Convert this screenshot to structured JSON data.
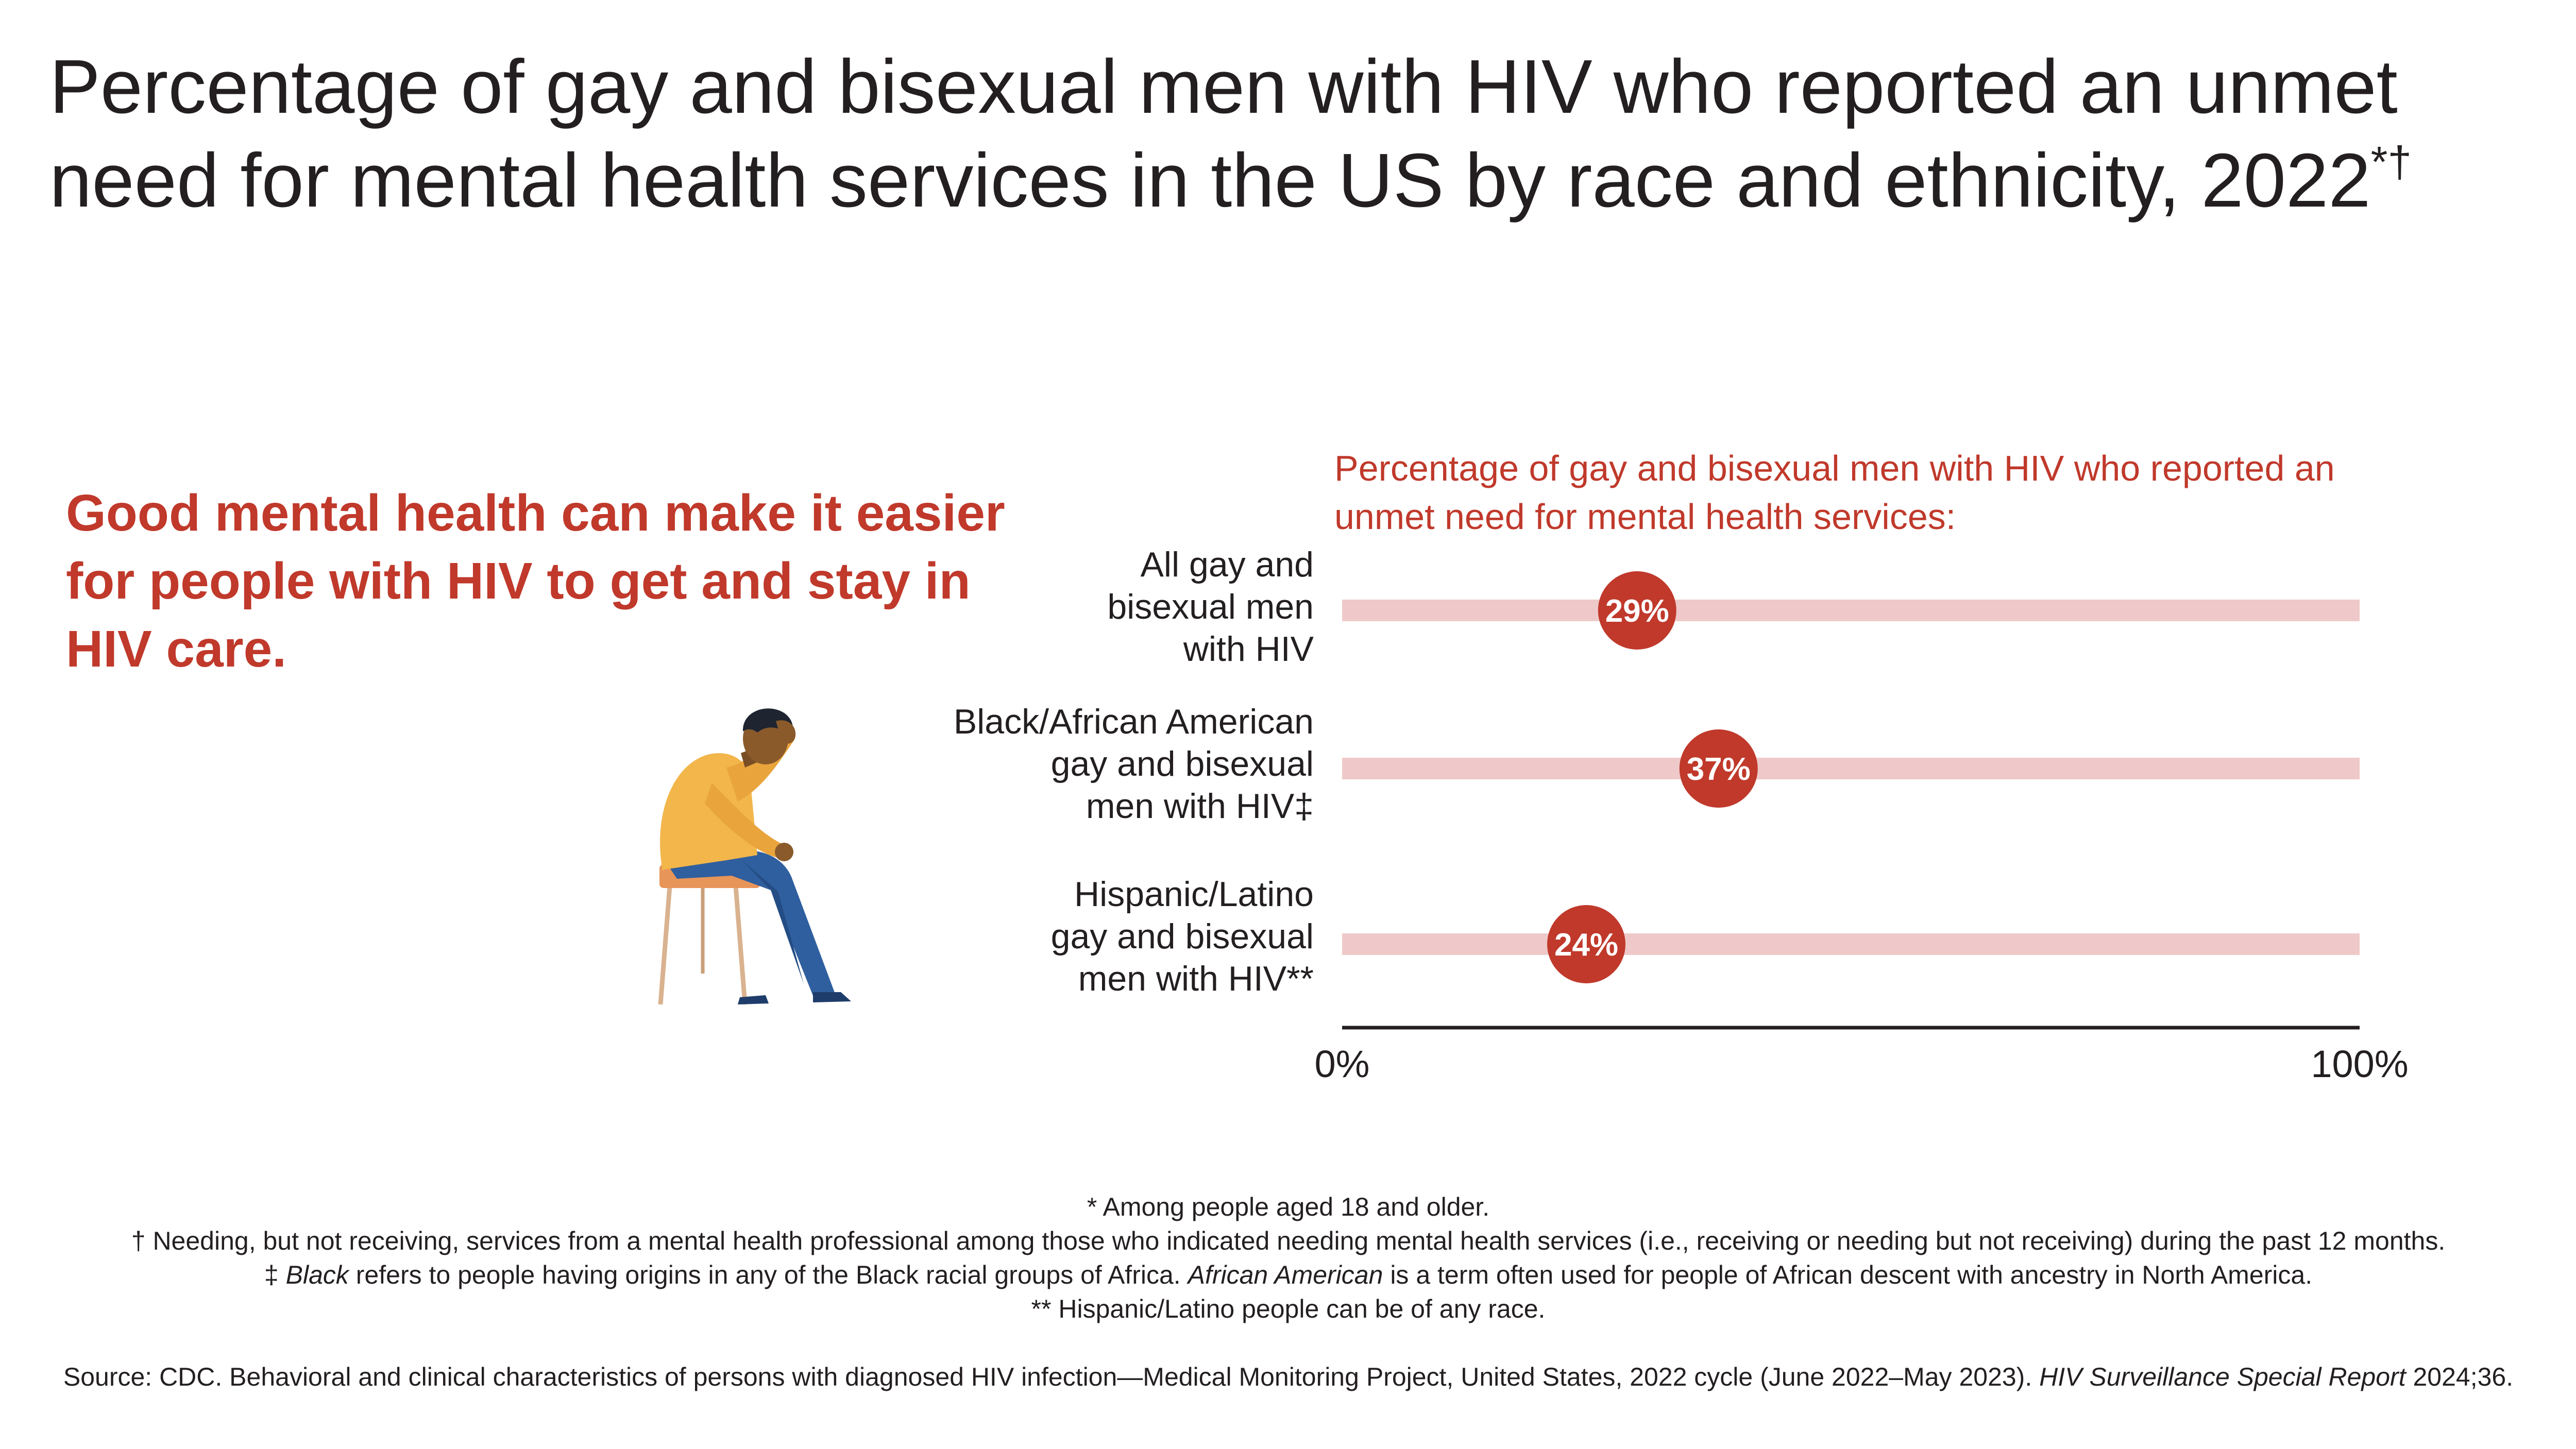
{
  "title": {
    "text": "Percentage of gay and bisexual men with HIV who reported an unmet need for mental health services in the US by race and ethnicity, 2022",
    "marks": "*†"
  },
  "lead_text": "Good mental health can make it easier for people with HIV to get and stay in HIV care.",
  "illustration": "man-sitting-on-stool-holding-head-icon",
  "colors": {
    "accent": "#c0392b",
    "track": "#efc9c9",
    "text": "#231f20",
    "skin": "#8a5a2b",
    "shirt": "#f2b64b",
    "pants": "#2f5f9e",
    "stool": "#e8955a"
  },
  "chart_data": {
    "type": "bar",
    "title": "Percentage of gay and bisexual men with HIV who reported an unmet need for mental health services:",
    "categories": [
      [
        "All gay and",
        "bisexual men",
        "with HIV"
      ],
      [
        "Black/African American",
        "gay and bisexual",
        "men with HIV‡"
      ],
      [
        "Hispanic/Latino",
        "gay and bisexual",
        "men with HIV**"
      ]
    ],
    "values": [
      29,
      37,
      24
    ],
    "value_labels": [
      "29%",
      "37%",
      "24%"
    ],
    "xlim": [
      0,
      100
    ],
    "tick_labels": [
      "0%",
      "100%"
    ],
    "xlabel": "",
    "ylabel": "",
    "grid": false,
    "legend": "none"
  },
  "footnotes": {
    "star": "* Among people aged 18 and older.",
    "dagger": "† Needing, but not receiving, services from a mental health professional among those who indicated needing mental health services (i.e., receiving or needing but not receiving) during the past 12 months.",
    "ddagger_mark": "‡",
    "ddagger_term1": "Black",
    "ddagger_text1": "refers to people having origins in any of the Black racial groups of Africa.",
    "ddagger_term2": "African American",
    "ddagger_text2": "is a term often used for people of African descent with ancestry in North America.",
    "double_star": "** Hispanic/Latino people can be of any race."
  },
  "source": {
    "prefix": "Source: CDC. Behavioral and clinical characteristics of persons with diagnosed HIV infection—Medical Monitoring Project, United States, 2022 cycle (June 2022–May 2023).",
    "journal": "HIV Surveillance Special Report",
    "suffix": "2024;36."
  }
}
